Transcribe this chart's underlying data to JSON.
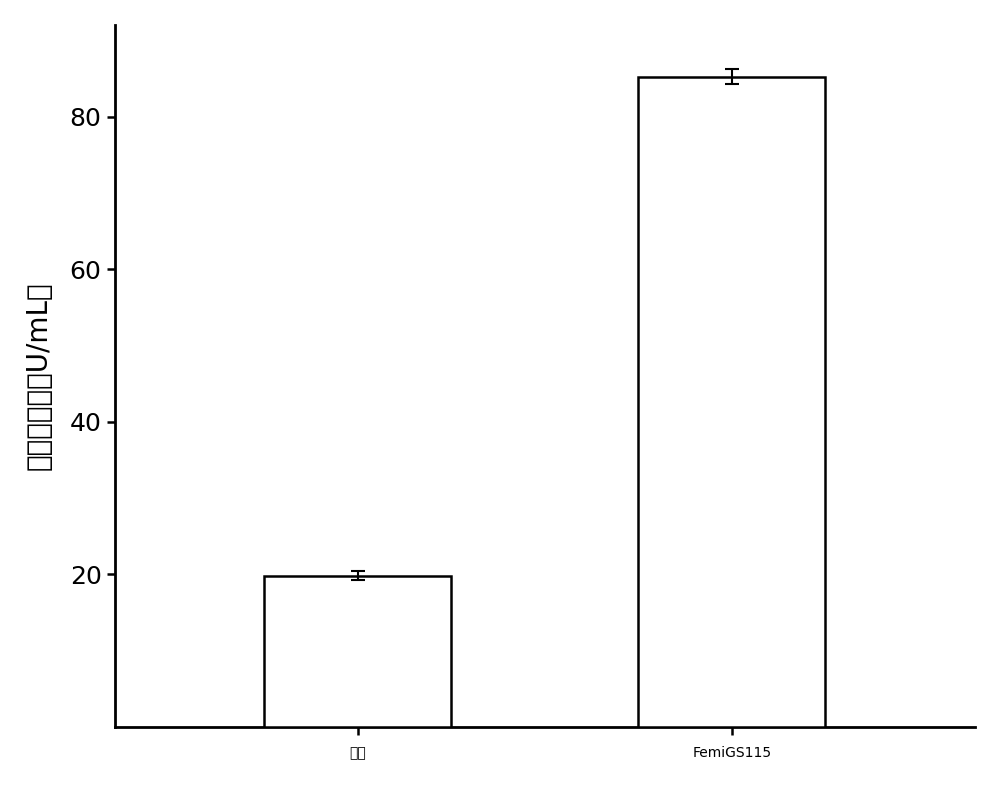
{
  "categories": [
    "对照",
    "FemiGS115"
  ],
  "values": [
    19.8,
    85.2
  ],
  "errors": [
    0.6,
    1.0
  ],
  "bar_colors": [
    "white",
    "white"
  ],
  "bar_edgecolors": [
    "black",
    "black"
  ],
  "bar_linewidth": 1.8,
  "ylabel": "酬胺酶酶活（U/mL）",
  "ylim": [
    0,
    92
  ],
  "yticks": [
    20,
    40,
    60,
    80
  ],
  "bar_width": 0.5,
  "figsize": [
    10.0,
    7.85
  ],
  "dpi": 100,
  "ylabel_fontsize": 20,
  "tick_fontsize": 18,
  "xtick_fontsize": 20,
  "error_capsize": 5,
  "error_linewidth": 1.5,
  "background_color": "white",
  "spine_linewidth": 2.0
}
